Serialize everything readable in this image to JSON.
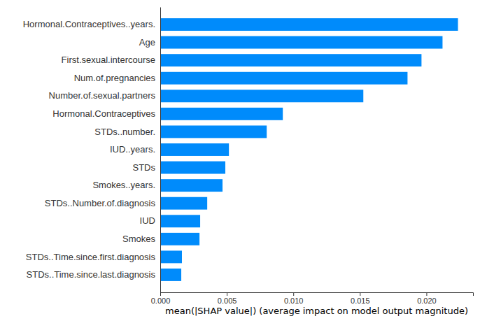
{
  "chart_data": {
    "type": "bar",
    "orientation": "horizontal",
    "x_label": "mean(|SHAP value|) (average impact on model output magnitude)",
    "categories": [
      "Hormonal.Contraceptives..years.",
      "Age",
      "First.sexual.intercourse",
      "Num.of.pregnancies",
      "Number.of.sexual.partners",
      "Hormonal.Contraceptives",
      "STDs..number.",
      "IUD..years.",
      "STDs",
      "Smokes..years.",
      "STDs..Number.of.diagnosis",
      "IUD",
      "Smokes",
      "STDs..Time.since.first.diagnosis",
      "STDs..Time.since.last.diagnosis"
    ],
    "values": [
      0.02237,
      0.02121,
      0.01963,
      0.01858,
      0.01526,
      0.00921,
      0.008,
      0.00516,
      0.00489,
      0.00468,
      0.00353,
      0.003,
      0.00295,
      0.00163,
      0.00158
    ],
    "color": "#008bfb",
    "xlim": [
      0,
      0.0235
    ],
    "xticks": [
      {
        "value": 0,
        "label": "0.000"
      },
      {
        "value": 0.005,
        "label": "0.005"
      },
      {
        "value": 0.01,
        "label": "0.010"
      },
      {
        "value": 0.015,
        "label": "0.015"
      },
      {
        "value": 0.02,
        "label": "0.020"
      }
    ],
    "grid": false
  }
}
